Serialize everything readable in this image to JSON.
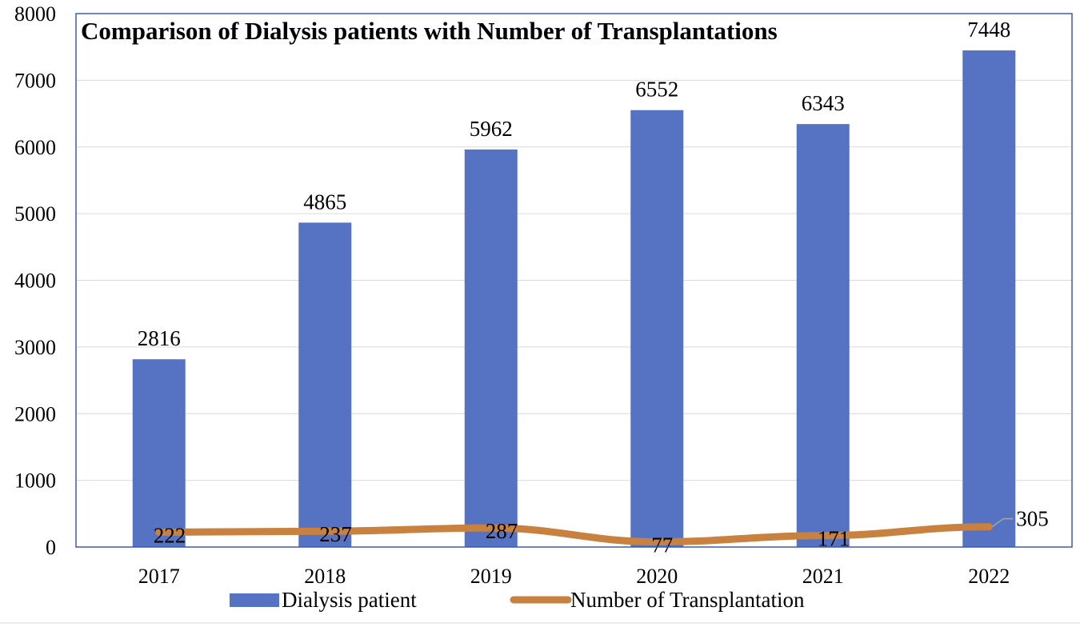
{
  "chart_data": {
    "type": "bar+line",
    "title": "Comparison of Dialysis patients with Number of Transplantations",
    "categories": [
      "2017",
      "2018",
      "2019",
      "2020",
      "2021",
      "2022"
    ],
    "series": [
      {
        "name": "Dialysis patient",
        "type": "bar",
        "color": "#5573C2",
        "values": [
          2816,
          4865,
          5962,
          6552,
          6343,
          7448
        ],
        "labels": [
          "2816",
          "4865",
          "5962",
          "6552",
          "6343",
          "7448"
        ]
      },
      {
        "name": "Number of Transplantation",
        "type": "line",
        "color": "#C8813F",
        "values": [
          222,
          237,
          287,
          77,
          171,
          305
        ],
        "labels": [
          "222",
          "237",
          "287",
          "77",
          "171",
          "305"
        ]
      }
    ],
    "ylim": [
      0,
      8000
    ],
    "yticks": [
      0,
      1000,
      2000,
      3000,
      4000,
      5000,
      6000,
      7000,
      8000
    ],
    "ytick_labels": [
      "0",
      "1000",
      "2000",
      "3000",
      "4000",
      "5000",
      "6000",
      "7000",
      "8000"
    ],
    "grid": true,
    "legend": "bottom-center"
  }
}
